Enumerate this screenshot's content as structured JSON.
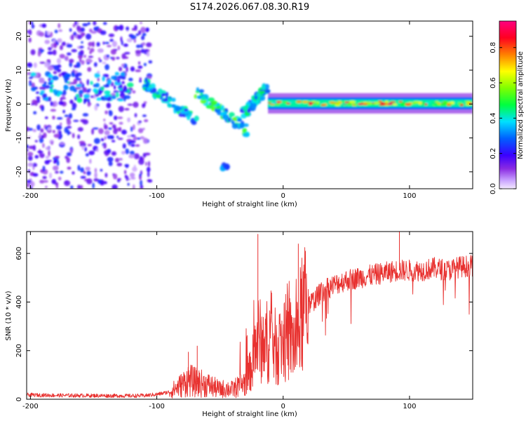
{
  "figure_title": "S174.2026.067.08.30.R19",
  "colors": {
    "snr_line": "#e8312f",
    "axis": "#000000"
  },
  "chart_data": [
    {
      "type": "heatmap",
      "title": "S174.2026.067.08.30.R19",
      "xlabel": "Height of straight line (km)",
      "ylabel": "Frequency (Hz)",
      "xlim": [
        -203,
        150
      ],
      "ylim": [
        -25,
        24.5
      ],
      "xticks": [
        -200,
        -100,
        0,
        100
      ],
      "yticks": [
        -20,
        -10,
        0,
        10,
        20
      ],
      "colorbar": {
        "label": "Normalized spectral amplitude",
        "range": [
          0,
          0.95
        ],
        "ticks": [
          0.0,
          0.2,
          0.4,
          0.6,
          0.8
        ]
      },
      "features": [
        {
          "name": "scattered noise",
          "x_range": [
            -203,
            -105
          ],
          "freq_range": [
            -25,
            24
          ],
          "level": 0.15
        },
        {
          "name": "noise band",
          "x_range": [
            -200,
            -120
          ],
          "freq_center": 5,
          "level": 0.3
        },
        {
          "name": "descending streak A",
          "x_range": [
            -110,
            -68
          ],
          "freq_from": 6,
          "freq_to": -5,
          "level": 0.3
        },
        {
          "name": "descending streak B",
          "x_range": [
            -70,
            -28
          ],
          "freq_from": 4,
          "freq_to": -8,
          "level": 0.35
        },
        {
          "name": "rising segment",
          "x_range": [
            -32,
            -12
          ],
          "freq_from": -3,
          "freq_to": 5,
          "level": 0.3
        },
        {
          "name": "isolated blob",
          "x": -46,
          "freq": -18,
          "level": 0.25
        },
        {
          "name": "main signal line",
          "x_range": [
            -12,
            150
          ],
          "freq_center": 0.2,
          "level": 0.7
        }
      ]
    },
    {
      "type": "line",
      "xlabel": "Height of straight line (km)",
      "ylabel": "SNR (10 * v/v)",
      "xlim": [
        -203,
        150
      ],
      "ylim": [
        0,
        690
      ],
      "xticks": [
        -200,
        -100,
        0,
        100
      ],
      "yticks": [
        0,
        200,
        400,
        600
      ],
      "series": [
        {
          "name": "SNR",
          "x": [
            -203,
            -180,
            -150,
            -120,
            -110,
            -100,
            -90,
            -80,
            -75,
            -70,
            -60,
            -50,
            -45,
            -40,
            -30,
            -25,
            -20,
            -15,
            -10,
            -5,
            0,
            5,
            10,
            15,
            20,
            25,
            30,
            40,
            50,
            60,
            70,
            80,
            90,
            100,
            110,
            120,
            130,
            140,
            150
          ],
          "values": [
            18,
            16,
            15,
            14,
            15,
            20,
            30,
            60,
            80,
            70,
            60,
            40,
            45,
            40,
            70,
            130,
            250,
            220,
            260,
            200,
            250,
            250,
            230,
            350,
            390,
            410,
            440,
            470,
            490,
            500,
            510,
            520,
            530,
            530,
            530,
            540,
            530,
            545,
            550
          ]
        }
      ],
      "spikes": [
        {
          "x": -75,
          "value": 195
        },
        {
          "x": -68,
          "value": 220
        },
        {
          "x": -20,
          "value": 680
        },
        {
          "x": 12,
          "value": 640
        },
        {
          "x": 92,
          "value": 690
        }
      ]
    }
  ]
}
